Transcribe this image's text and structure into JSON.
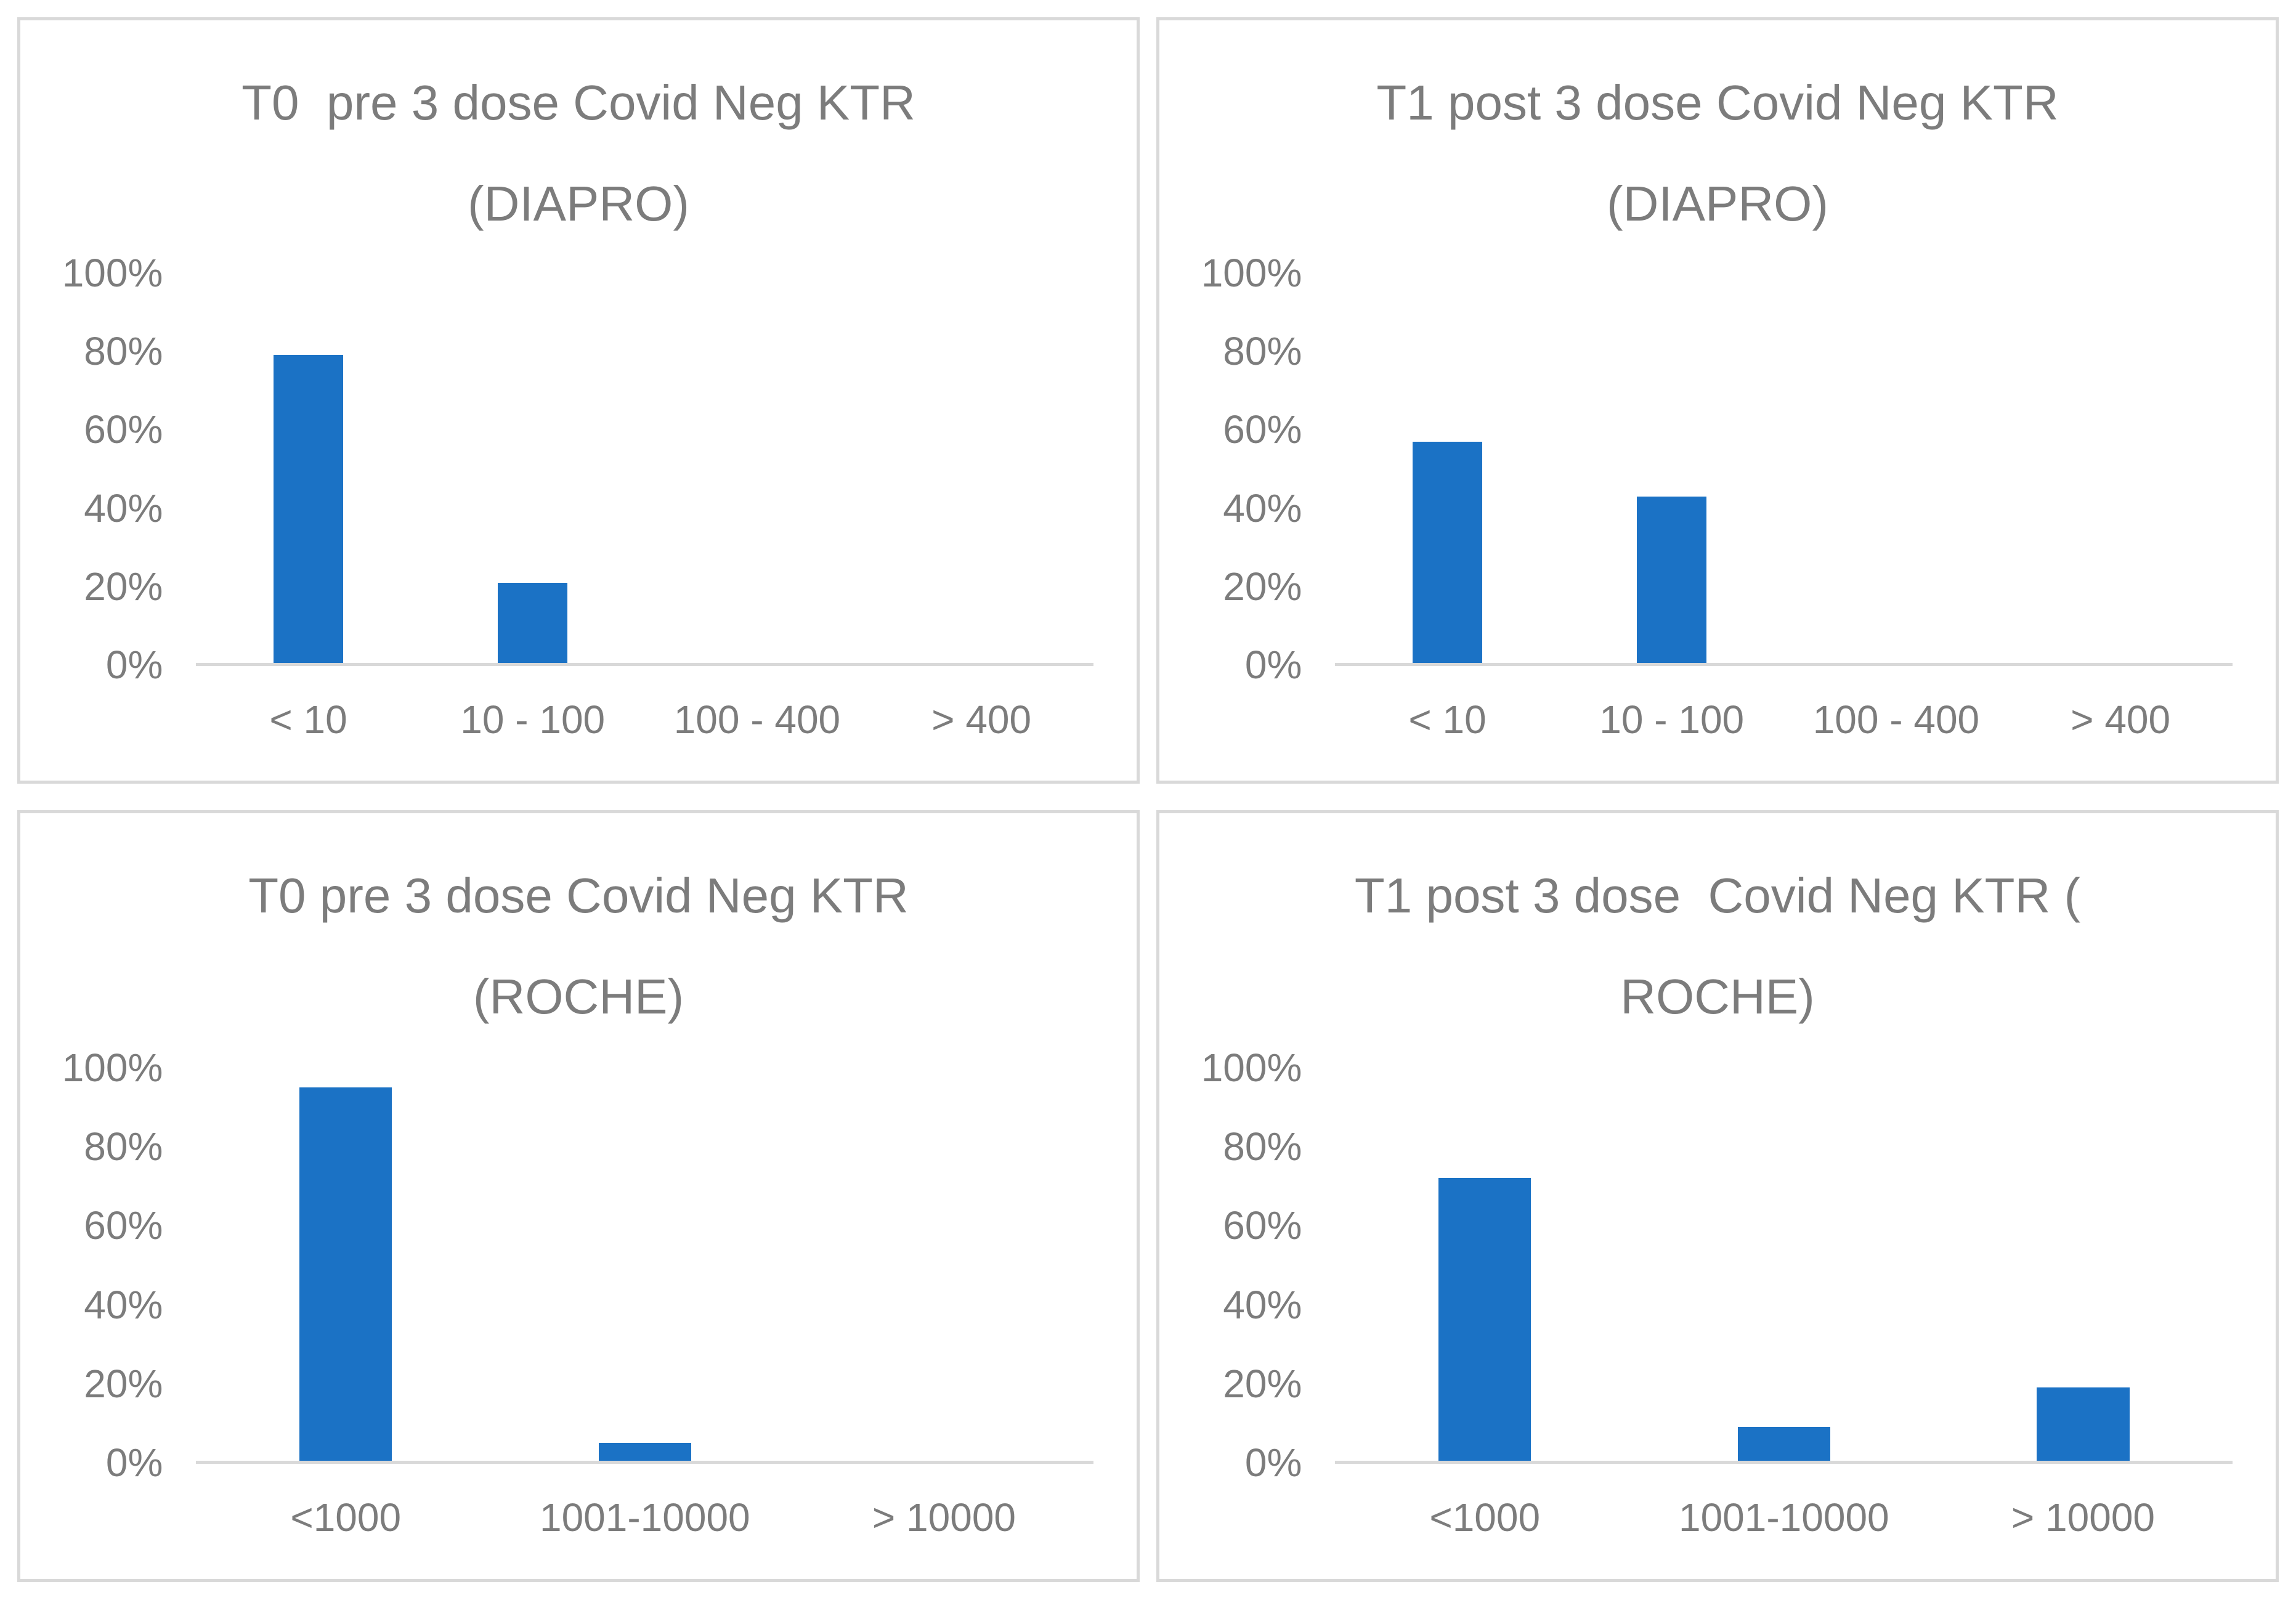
{
  "colors": {
    "bar_fill": "#1b72c5",
    "title_text": "#7c7c7c",
    "axis_text": "#7c7c7c",
    "axis_line": "#d9d9d9",
    "panel_border": "#d9d9d9",
    "background": "#ffffff"
  },
  "chart_data": [
    {
      "type": "bar",
      "title_lines": [
        "T0  pre 3 dose Covid Neg KTR",
        "(DIAPRO)"
      ],
      "categories": [
        "< 10",
        "10 - 100",
        "100 - 400",
        "> 400"
      ],
      "values": [
        79,
        21,
        0,
        0
      ],
      "unit": "%",
      "yticks": [
        "100%",
        "80%",
        "60%",
        "40%",
        "20%",
        "0%"
      ],
      "ylim": [
        0,
        100
      ],
      "grid": false,
      "legend": "none"
    },
    {
      "type": "bar",
      "title_lines": [
        "T1 post 3 dose Covid Neg KTR",
        "(DIAPRO)"
      ],
      "categories": [
        "< 10",
        "10 - 100",
        "100 - 400",
        "> 400"
      ],
      "values": [
        57,
        43,
        0,
        0
      ],
      "unit": "%",
      "yticks": [
        "100%",
        "80%",
        "60%",
        "40%",
        "20%",
        "0%"
      ],
      "ylim": [
        0,
        100
      ],
      "grid": false,
      "legend": "none"
    },
    {
      "type": "bar",
      "title_lines": [
        "T0 pre 3 dose Covid Neg KTR",
        "(ROCHE)"
      ],
      "categories": [
        "<1000",
        "1001-10000",
        "> 10000"
      ],
      "values": [
        95,
        5,
        0
      ],
      "unit": "%",
      "yticks": [
        "100%",
        "80%",
        "60%",
        "40%",
        "20%",
        "0%"
      ],
      "ylim": [
        0,
        100
      ],
      "grid": false,
      "legend": "none"
    },
    {
      "type": "bar",
      "title_lines": [
        "T1 post 3 dose  Covid Neg KTR (",
        "ROCHE)"
      ],
      "categories": [
        "<1000",
        "1001-10000",
        "> 10000"
      ],
      "values": [
        72,
        9,
        19
      ],
      "unit": "%",
      "yticks": [
        "100%",
        "80%",
        "60%",
        "40%",
        "20%",
        "0%"
      ],
      "ylim": [
        0,
        100
      ],
      "grid": false,
      "legend": "none"
    }
  ]
}
